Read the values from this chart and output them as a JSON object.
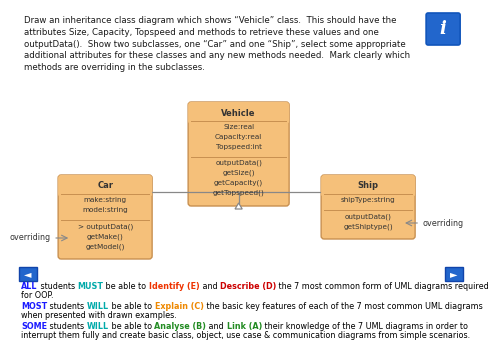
{
  "bg_color": "#ffffff",
  "top_text": "Draw an inheritance class diagram which shows “Vehicle” class.  This should have the\nattributes Size, Capacity, Topspeed and methods to retrieve these values and one\noutputData().  Show two subclasses, one “Car” and one “Ship”, select some appropriate\nadditional attributes for these classes and any new methods needed.  Mark clearly which\nmethods are overriding in the subclasses.",
  "vehicle_title": "Vehicle",
  "vehicle_attrs": "Size:real\nCapacity:real\nTopspeed:int",
  "vehicle_methods": "outputData()\ngetSize()\ngetCapacity()\ngetTopspeed()",
  "car_title": "Car",
  "car_attrs": "make:string\nmodel:string",
  "car_methods": "> outputData()\ngetMake()\ngetModel()",
  "ship_title": "Ship",
  "ship_attrs": "shipType:string",
  "ship_methods": "outputData()\ngetShiptype()",
  "box_fill": "#f5c07a",
  "box_edge": "#c89050",
  "box_title_fill": "#f0a840",
  "arrow_color": "#888888",
  "bottom_line1_parts": [
    {
      "text": "ALL",
      "color": "#1a1aff",
      "bold": true
    },
    {
      "text": " students ",
      "color": "#000000",
      "bold": false
    },
    {
      "text": "MUST",
      "color": "#00aaaa",
      "bold": true
    },
    {
      "text": " be able to ",
      "color": "#000000",
      "bold": false
    },
    {
      "text": "Identify (E)",
      "color": "#ee3300",
      "bold": true
    },
    {
      "text": " and ",
      "color": "#000000",
      "bold": false
    },
    {
      "text": "Describe (D)",
      "color": "#cc0000",
      "bold": true
    },
    {
      "text": " the 7 most common form of UML diagrams required",
      "color": "#000000",
      "bold": false
    }
  ],
  "bottom_line1b": "for OOP.",
  "bottom_line2_parts": [
    {
      "text": "MOST",
      "color": "#1a1aff",
      "bold": true
    },
    {
      "text": " students ",
      "color": "#000000",
      "bold": false
    },
    {
      "text": "WILL",
      "color": "#00aaaa",
      "bold": true
    },
    {
      "text": " be able to ",
      "color": "#000000",
      "bold": false
    },
    {
      "text": "Explain (C)",
      "color": "#ee8800",
      "bold": true
    },
    {
      "text": " the basic key features of each of the 7 most common UML diagrams",
      "color": "#000000",
      "bold": false
    }
  ],
  "bottom_line2b": "when presented with drawn examples.",
  "bottom_line3_parts": [
    {
      "text": "SOME",
      "color": "#1a1aff",
      "bold": true
    },
    {
      "text": " students ",
      "color": "#000000",
      "bold": false
    },
    {
      "text": "WILL",
      "color": "#00aaaa",
      "bold": true
    },
    {
      "text": " be able to ",
      "color": "#000000",
      "bold": false
    },
    {
      "text": "Analyse (B)",
      "color": "#228b22",
      "bold": true
    },
    {
      "text": " and ",
      "color": "#000000",
      "bold": false
    },
    {
      "text": "Link (A)",
      "color": "#228b22",
      "bold": true
    },
    {
      "text": " their knowledge of the 7 UML diagrams in order to",
      "color": "#000000",
      "bold": false
    }
  ],
  "bottom_line3b": "interrupt them fully and create basic class, object, use case & communication diagrams from simple scenarios."
}
